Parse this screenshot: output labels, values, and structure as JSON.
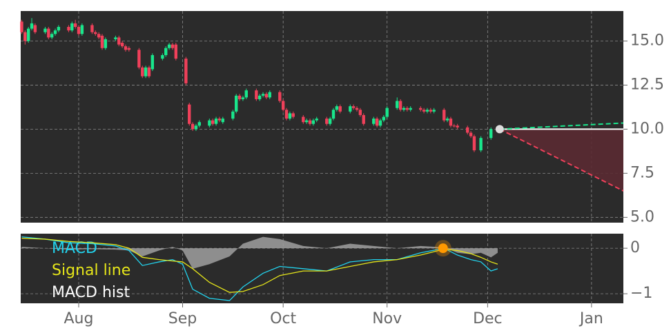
{
  "chart_data": [
    {
      "type": "candlestick",
      "xlim": [
        13.7,
        193.5
      ],
      "ylim": [
        4.7,
        16.7
      ],
      "yticks": [
        {
          "value": 15,
          "label": "15.0"
        },
        12.5,
        {
          "value": 10,
          "label": "10.0"
        },
        7.5,
        {
          "value": 5,
          "label": "5.0"
        }
      ],
      "grid": true,
      "up_color": "#19e68c",
      "down_color": "#f0405a",
      "x": [
        14,
        15,
        16,
        17,
        18,
        21,
        22,
        23,
        24,
        25,
        28,
        29,
        30,
        31,
        32,
        35,
        36,
        37,
        38,
        39,
        42,
        43,
        44,
        45,
        46,
        49,
        50,
        51,
        52,
        53,
        56,
        57,
        58,
        59,
        60,
        63,
        64,
        65,
        66,
        67,
        70,
        71,
        72,
        73,
        74,
        77,
        78,
        79,
        80,
        81,
        84,
        85,
        86,
        87,
        88,
        91,
        92,
        93,
        94,
        95,
        98,
        99,
        100,
        101,
        102,
        105,
        106,
        107,
        108,
        109,
        112,
        113,
        114,
        115,
        116,
        119,
        120,
        121,
        122,
        123,
        126,
        127,
        128,
        129,
        130,
        133,
        134,
        135,
        136,
        137,
        140,
        141,
        142,
        143,
        144,
        147,
        148,
        149,
        151,
        154
      ],
      "open": [
        16.1,
        15.5,
        15.0,
        15.7,
        15.9,
        15.5,
        15.7,
        15.2,
        15.4,
        15.6,
        15.8,
        15.6,
        16.0,
        15.8,
        15.4,
        15.9,
        15.5,
        15.4,
        15.3,
        14.6,
        15.1,
        15.2,
        14.9,
        14.7,
        14.6,
        14.5,
        13.5,
        13.0,
        13.5,
        13.4,
        14.0,
        14.2,
        14.6,
        14.8,
        14.8,
        14.0,
        11.4,
        10.3,
        10.0,
        10.2,
        10.2,
        10.5,
        10.3,
        10.6,
        10.4,
        10.6,
        11.0,
        11.9,
        11.7,
        11.8,
        12.2,
        11.7,
        11.9,
        12.0,
        11.8,
        12.1,
        11.6,
        11.1,
        10.6,
        10.9,
        10.7,
        10.4,
        10.5,
        10.3,
        10.5,
        10.6,
        10.3,
        10.6,
        11.1,
        11.3,
        11.0,
        11.3,
        11.2,
        11.1,
        10.8,
        10.3,
        10.6,
        10.2,
        10.5,
        10.7,
        11.2,
        11.6,
        11.1,
        11.2,
        11.1,
        11.2,
        11.1,
        11.0,
        11.1,
        11.0,
        11.1,
        10.5,
        10.6,
        10.2,
        10.2,
        10.1,
        9.8,
        9.6,
        8.8,
        9.5
      ],
      "high": [
        16.2,
        15.6,
        15.8,
        16.3,
        16.0,
        15.8,
        15.8,
        15.5,
        15.7,
        15.9,
        15.9,
        16.1,
        16.2,
        15.9,
        16.0,
        16.0,
        15.6,
        15.5,
        15.4,
        15.2,
        15.3,
        15.3,
        15.0,
        14.8,
        14.7,
        14.6,
        13.6,
        13.6,
        13.6,
        14.3,
        14.3,
        14.7,
        14.9,
        14.9,
        14.9,
        14.1,
        11.5,
        10.4,
        10.3,
        10.5,
        10.6,
        10.6,
        10.7,
        10.7,
        10.7,
        11.1,
        12.0,
        12.0,
        11.9,
        12.3,
        12.3,
        12.0,
        12.1,
        12.1,
        12.2,
        12.2,
        11.7,
        11.2,
        11.0,
        11.0,
        10.8,
        10.6,
        10.6,
        10.6,
        10.7,
        10.7,
        10.7,
        11.2,
        11.4,
        11.4,
        11.4,
        11.4,
        11.3,
        11.2,
        10.9,
        10.7,
        10.7,
        10.6,
        10.8,
        11.3,
        11.8,
        11.7,
        11.3,
        11.3,
        11.3,
        11.3,
        11.2,
        11.2,
        11.2,
        11.2,
        11.2,
        10.7,
        10.7,
        10.3,
        10.3,
        10.2,
        9.9,
        9.7,
        9.6,
        10.1
      ],
      "low": [
        15.4,
        14.8,
        14.9,
        15.6,
        15.4,
        15.4,
        15.1,
        15.1,
        15.3,
        15.5,
        15.5,
        15.5,
        15.7,
        15.3,
        15.3,
        15.4,
        15.3,
        15.1,
        14.5,
        14.5,
        15.0,
        14.7,
        14.6,
        14.4,
        14.4,
        13.4,
        12.9,
        12.9,
        12.9,
        13.3,
        13.9,
        14.1,
        14.5,
        14.5,
        13.9,
        12.5,
        10.2,
        9.9,
        9.9,
        10.1,
        10.1,
        10.2,
        10.2,
        10.4,
        10.3,
        10.5,
        10.9,
        11.6,
        11.6,
        11.7,
        11.6,
        11.6,
        11.8,
        11.7,
        11.7,
        11.5,
        11.0,
        10.5,
        10.5,
        10.6,
        10.3,
        10.3,
        10.2,
        10.2,
        10.4,
        10.2,
        10.2,
        10.5,
        11.0,
        10.9,
        10.9,
        11.1,
        11.0,
        10.7,
        10.2,
        10.2,
        10.1,
        10.1,
        10.4,
        10.6,
        11.1,
        11.0,
        11.0,
        11.0,
        11.0,
        11.0,
        10.9,
        10.9,
        10.9,
        10.9,
        10.4,
        10.4,
        10.1,
        10.1,
        10.0,
        9.7,
        9.5,
        8.7,
        8.7,
        9.4
      ],
      "close": [
        15.5,
        15.0,
        15.7,
        16.0,
        15.5,
        15.7,
        15.2,
        15.4,
        15.6,
        15.8,
        15.6,
        16.0,
        15.8,
        15.4,
        15.9,
        15.5,
        15.4,
        15.2,
        14.6,
        15.1,
        15.2,
        14.8,
        14.7,
        14.5,
        14.5,
        13.5,
        13.0,
        13.5,
        13.0,
        14.2,
        14.2,
        14.6,
        14.8,
        14.6,
        14.0,
        12.6,
        10.3,
        10.0,
        10.2,
        10.4,
        10.5,
        10.3,
        10.6,
        10.5,
        10.6,
        11.0,
        11.9,
        11.7,
        11.8,
        12.2,
        11.7,
        11.9,
        12.0,
        11.8,
        12.1,
        11.6,
        11.1,
        10.6,
        10.9,
        10.7,
        10.4,
        10.5,
        10.3,
        10.5,
        10.6,
        10.3,
        10.6,
        11.1,
        11.3,
        11.0,
        11.3,
        11.2,
        11.1,
        10.8,
        10.3,
        10.6,
        10.2,
        10.5,
        10.7,
        11.2,
        11.6,
        11.1,
        11.2,
        11.1,
        11.2,
        11.1,
        11.0,
        11.1,
        11.0,
        11.1,
        10.5,
        10.6,
        10.2,
        10.2,
        10.1,
        9.8,
        9.6,
        8.8,
        9.5,
        10.0
      ],
      "forecast": {
        "x": [
          156.6,
          193.5
        ],
        "upper": [
          10.0,
          10.35
        ],
        "mid": [
          10.0,
          10.0
        ],
        "lower": [
          10.0,
          6.5
        ],
        "upper_color": "#19e68c",
        "lower_color": "#f0405a",
        "mid_color": "#ffffff",
        "fill": "#5a2a32"
      }
    },
    {
      "type": "line",
      "xlim": [
        13.7,
        193.5
      ],
      "ylim": [
        -1.21,
        0.32
      ],
      "xticks": [
        {
          "value": 31,
          "label": "Aug"
        },
        {
          "value": 62,
          "label": "Sep"
        },
        {
          "value": 92,
          "label": "Oct"
        },
        {
          "value": 123,
          "label": "Nov"
        },
        {
          "value": 153,
          "label": "Dec"
        },
        {
          "value": 184,
          "label": "Jan"
        }
      ],
      "yticks": [
        0,
        {
          "value": -1,
          "label": "−1"
        }
      ],
      "grid": true,
      "x": [
        14,
        21,
        28,
        35,
        42,
        46,
        50,
        55,
        59,
        62,
        65,
        70,
        76,
        80,
        86,
        91,
        98,
        105,
        112,
        119,
        126,
        133,
        140,
        144,
        148,
        151,
        154,
        156
      ],
      "series": [
        {
          "name": "MACD",
          "color": "#22d3ee",
          "values": [
            0.25,
            0.2,
            0.12,
            0.1,
            0.05,
            -0.05,
            -0.38,
            -0.3,
            -0.25,
            -0.35,
            -0.9,
            -1.1,
            -1.15,
            -0.85,
            -0.55,
            -0.4,
            -0.45,
            -0.5,
            -0.3,
            -0.25,
            -0.25,
            -0.1,
            0.0,
            -0.15,
            -0.25,
            -0.3,
            -0.5,
            -0.45
          ]
        },
        {
          "name": "Signal line",
          "color": "#e6e61a",
          "values": [
            0.22,
            0.2,
            0.15,
            0.12,
            0.08,
            0.0,
            -0.2,
            -0.25,
            -0.28,
            -0.3,
            -0.45,
            -0.75,
            -0.97,
            -0.95,
            -0.8,
            -0.6,
            -0.5,
            -0.5,
            -0.4,
            -0.3,
            -0.25,
            -0.15,
            -0.02,
            -0.05,
            -0.12,
            -0.2,
            -0.3,
            -0.35
          ]
        },
        {
          "name": "MACD hist",
          "type": "area",
          "color": "#a0a0a0",
          "legend_color": "#ffffff",
          "values": [
            0.03,
            0.0,
            -0.03,
            -0.02,
            -0.03,
            -0.05,
            -0.18,
            -0.05,
            0.03,
            -0.05,
            -0.45,
            -0.35,
            -0.18,
            0.1,
            0.25,
            0.2,
            0.05,
            0.0,
            0.1,
            0.05,
            0.0,
            0.05,
            0.02,
            -0.1,
            -0.13,
            -0.1,
            -0.2,
            -0.1
          ]
        }
      ],
      "crossover": {
        "x": 139.7,
        "value": 0,
        "color": "#ff9900"
      }
    }
  ]
}
